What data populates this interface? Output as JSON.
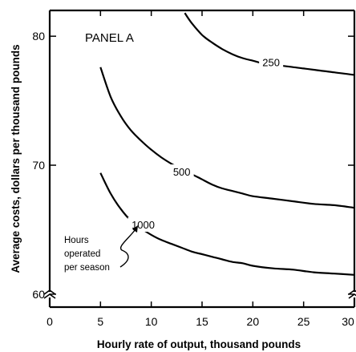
{
  "chart_data": {
    "type": "line",
    "panel_label": "PANEL A",
    "xlabel": "Hourly rate of output, thousand pounds",
    "ylabel": "Average costs, dollars per thousand pounds",
    "xlim": [
      0,
      30
    ],
    "ylim": [
      59,
      82
    ],
    "x_ticks": [
      "0",
      "5",
      "10",
      "15",
      "20",
      "25",
      "30"
    ],
    "y_ticks": [
      "60",
      "70",
      "80"
    ],
    "annotation": "Hours operated per season",
    "annotation_lines": [
      "Hours",
      "operated",
      "per season"
    ],
    "axis_breaks": [
      "x",
      "y"
    ],
    "grid": false,
    "series": [
      {
        "name": "250",
        "x": [
          13.3,
          14,
          15,
          16,
          17,
          18,
          19,
          20,
          21,
          22,
          23,
          24,
          25,
          26,
          27,
          28,
          29,
          30
        ],
        "values": [
          81.8,
          81.0,
          80.1,
          79.5,
          79.0,
          78.6,
          78.3,
          78.1,
          77.9,
          77.8,
          77.7,
          77.6,
          77.5,
          77.4,
          77.3,
          77.2,
          77.1,
          77.0
        ]
      },
      {
        "name": "500",
        "x": [
          5,
          6,
          7,
          8,
          9,
          10,
          11,
          12,
          13,
          14,
          15,
          16,
          17,
          18,
          19,
          20,
          22,
          24,
          26,
          28,
          30
        ],
        "values": [
          77.6,
          75.3,
          73.8,
          72.7,
          71.9,
          71.2,
          70.6,
          70.1,
          69.7,
          69.3,
          68.9,
          68.5,
          68.2,
          68.0,
          67.8,
          67.6,
          67.4,
          67.2,
          67.0,
          66.9,
          66.7
        ]
      },
      {
        "name": "1000",
        "x": [
          5,
          6,
          7,
          8,
          9,
          10,
          11,
          12,
          13,
          14,
          15,
          16,
          17,
          18,
          19,
          20,
          22,
          24,
          26,
          28,
          30
        ],
        "values": [
          69.4,
          67.8,
          66.6,
          65.7,
          65.1,
          64.6,
          64.2,
          63.9,
          63.6,
          63.3,
          63.1,
          62.9,
          62.7,
          62.5,
          62.4,
          62.2,
          62.0,
          61.9,
          61.7,
          61.6,
          61.5
        ]
      }
    ],
    "curve_labels": [
      {
        "text": "250",
        "x": 21.8,
        "y": 78.0
      },
      {
        "text": "500",
        "x": 13.0,
        "y": 69.5
      },
      {
        "text": "1000",
        "x": 9.2,
        "y": 65.4
      }
    ]
  }
}
